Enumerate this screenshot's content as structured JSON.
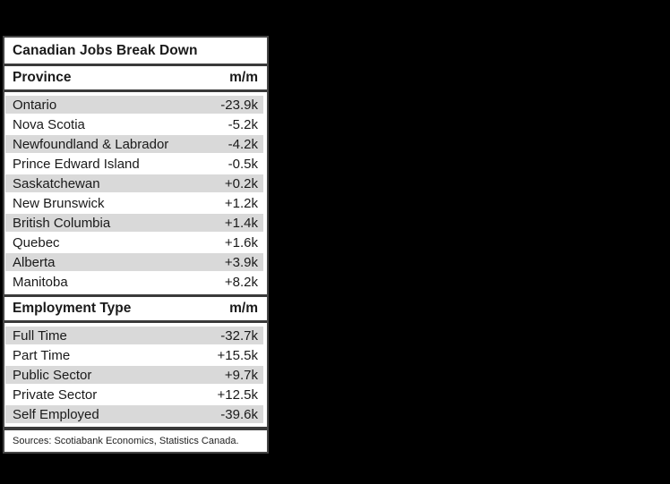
{
  "chart_data": {
    "type": "table",
    "title": "Canadian Jobs Break Down",
    "sections": [
      {
        "columns": [
          "Province",
          "m/m"
        ],
        "rows": [
          [
            "Ontario",
            "-23.9k"
          ],
          [
            "Nova Scotia",
            "-5.2k"
          ],
          [
            "Newfoundland & Labrador",
            "-4.2k"
          ],
          [
            "Prince Edward Island",
            "-0.5k"
          ],
          [
            "Saskatchewan",
            "+0.2k"
          ],
          [
            "New Brunswick",
            "+1.2k"
          ],
          [
            "British Columbia",
            "+1.4k"
          ],
          [
            "Quebec",
            "+1.6k"
          ],
          [
            "Alberta",
            "+3.9k"
          ],
          [
            "Manitoba",
            "+8.2k"
          ]
        ],
        "values_thousands": [
          -23.9,
          -5.2,
          -4.2,
          -0.5,
          0.2,
          1.2,
          1.4,
          1.6,
          3.9,
          8.2
        ]
      },
      {
        "columns": [
          "Employment Type",
          "m/m"
        ],
        "rows": [
          [
            "Full Time",
            "-32.7k"
          ],
          [
            "Part Time",
            "+15.5k"
          ],
          [
            "Public Sector",
            "+9.7k"
          ],
          [
            "Private Sector",
            "+12.5k"
          ],
          [
            "Self Employed",
            "-39.6k"
          ]
        ],
        "values_thousands": [
          -32.7,
          15.5,
          9.7,
          12.5,
          -39.6
        ]
      }
    ],
    "source_note": "Sources: Scotiabank Economics, Statistics Canada."
  },
  "colors": {
    "page_background": "#000000",
    "card_background": "#ffffff",
    "card_border": "#454545",
    "rule": "#3a3a3a",
    "row_stripe": "#d9d9d9",
    "text": "#1a1a1a"
  }
}
